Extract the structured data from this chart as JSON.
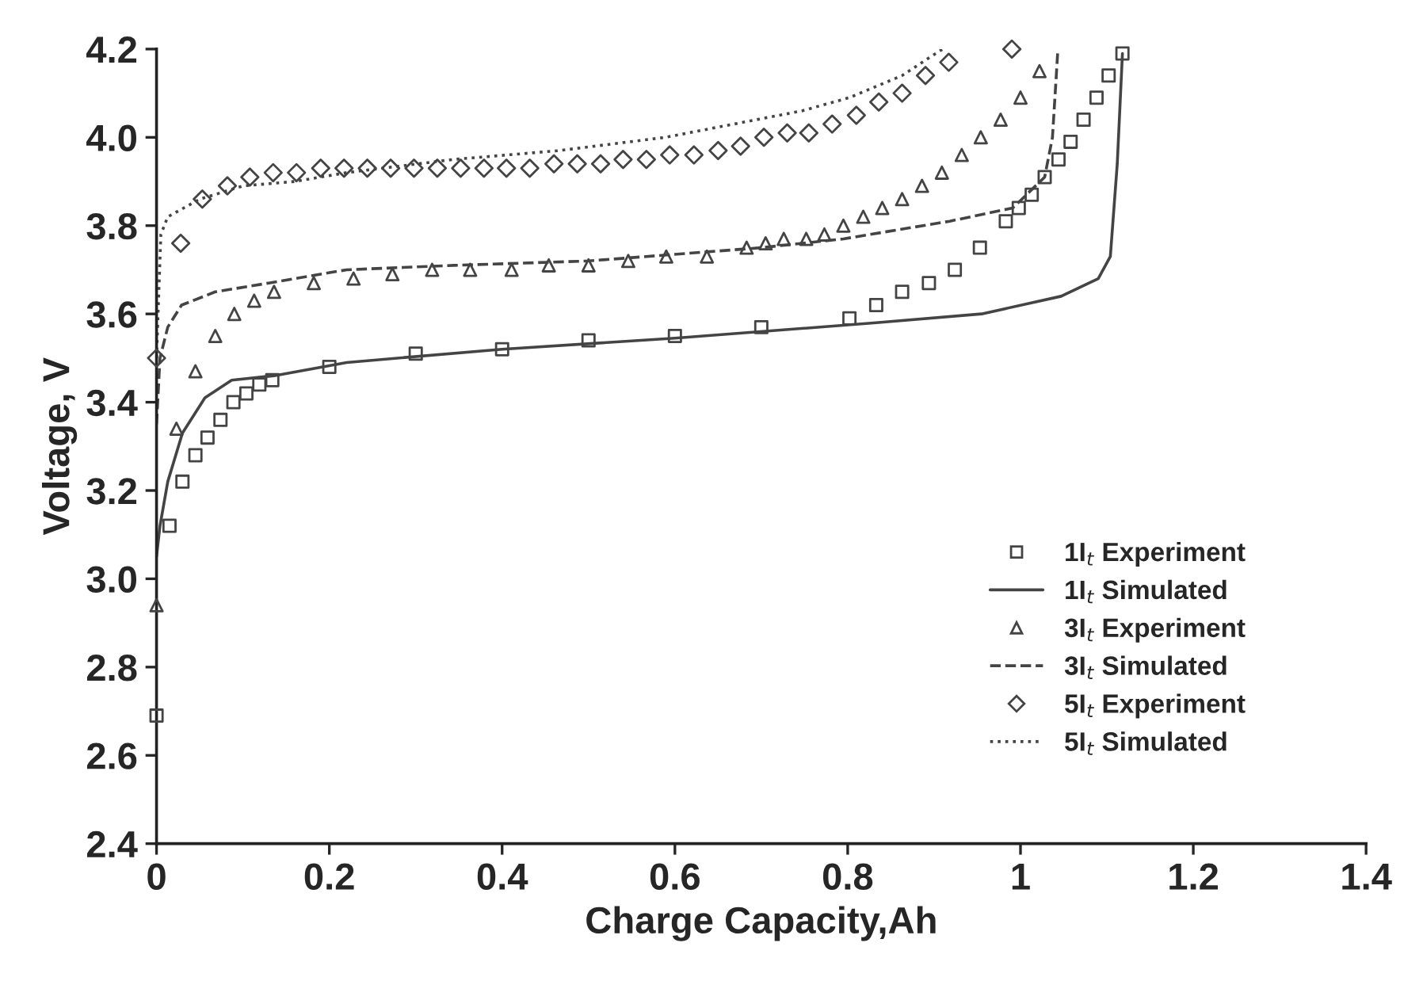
{
  "chart_data": {
    "type": "line",
    "xlabel": "Charge Capacity,Ah",
    "ylabel": "Voltage, V",
    "xlim": [
      0,
      1.4
    ],
    "xticks": [
      0,
      0.2,
      0.4,
      0.6,
      0.8,
      1,
      1.2,
      1.4
    ],
    "ylim": [
      2.4,
      4.2
    ],
    "yticks": [
      {
        "value": 2.4,
        "label": "2.4"
      },
      {
        "value": 2.6,
        "label": "2.6"
      },
      {
        "value": 2.8,
        "label": "2.8"
      },
      {
        "value": 3.0,
        "label": "3.0"
      },
      {
        "value": 3.2,
        "label": "3.2"
      },
      {
        "value": 3.4,
        "label": "3.4"
      },
      {
        "value": 3.6,
        "label": "3.6"
      },
      {
        "value": 3.8,
        "label": "3.8"
      },
      {
        "value": 4.0,
        "label": "4.0"
      },
      {
        "value": 4.2,
        "label": "4.2"
      }
    ],
    "grid": false,
    "legend": "bottom right",
    "series": [
      {
        "name": "1I$_{t}$ Experiment",
        "type": "scatter",
        "marker": "square",
        "color": "#444444",
        "x": [
          0,
          0.015,
          0.03,
          0.045,
          0.059,
          0.074,
          0.089,
          0.104,
          0.119,
          0.134,
          0.2,
          0.3,
          0.4,
          0.5,
          0.6,
          0.7,
          0.802,
          0.833,
          0.863,
          0.894,
          0.924,
          0.953,
          0.983,
          0.998,
          1.013,
          1.028,
          1.044,
          1.058,
          1.073,
          1.088,
          1.102,
          1.118
        ],
        "values": [
          2.69,
          3.12,
          3.22,
          3.28,
          3.32,
          3.36,
          3.4,
          3.42,
          3.44,
          3.45,
          3.48,
          3.51,
          3.52,
          3.54,
          3.55,
          3.57,
          3.59,
          3.62,
          3.65,
          3.67,
          3.7,
          3.75,
          3.81,
          3.84,
          3.87,
          3.91,
          3.95,
          3.99,
          4.04,
          4.09,
          4.14,
          4.19
        ]
      },
      {
        "name": "1I$_{t}$ Simulated",
        "line_style": "solid",
        "color": "#444444",
        "x": [
          0,
          0.004,
          0.013,
          0.03,
          0.056,
          0.087,
          0.136,
          0.22,
          0.4,
          0.6,
          0.833,
          0.955,
          1.047,
          1.09,
          1.104,
          1.112,
          1.118
        ],
        "values": [
          3.05,
          3.12,
          3.22,
          3.33,
          3.41,
          3.45,
          3.46,
          3.49,
          3.52,
          3.545,
          3.58,
          3.6,
          3.64,
          3.68,
          3.73,
          3.94,
          4.19
        ]
      },
      {
        "name": "3I$_{t}$ Experiment",
        "type": "scatter",
        "marker": "triangle",
        "color": "#444444",
        "x": [
          0,
          0.023,
          0.045,
          0.068,
          0.09,
          0.113,
          0.136,
          0.182,
          0.228,
          0.273,
          0.319,
          0.363,
          0.411,
          0.454,
          0.5,
          0.546,
          0.59,
          0.637,
          0.683,
          0.705,
          0.726,
          0.752,
          0.773,
          0.795,
          0.818,
          0.84,
          0.863,
          0.886,
          0.909,
          0.932,
          0.954,
          0.977,
          1.0,
          1.022
        ],
        "values": [
          2.94,
          3.34,
          3.47,
          3.55,
          3.6,
          3.63,
          3.65,
          3.67,
          3.68,
          3.69,
          3.7,
          3.7,
          3.7,
          3.71,
          3.71,
          3.72,
          3.73,
          3.73,
          3.75,
          3.76,
          3.77,
          3.77,
          3.78,
          3.8,
          3.82,
          3.84,
          3.86,
          3.89,
          3.92,
          3.96,
          4.0,
          4.04,
          4.09,
          4.15
        ]
      },
      {
        "name": "3I$_{t}$ Simulated",
        "line_style": "dashed",
        "color": "#444444",
        "x": [
          0,
          0.004,
          0.013,
          0.029,
          0.068,
          0.13,
          0.22,
          0.344,
          0.5,
          0.7,
          0.795,
          0.918,
          0.991,
          1.028,
          1.037,
          1.043
        ],
        "values": [
          3.35,
          3.5,
          3.57,
          3.62,
          3.65,
          3.67,
          3.7,
          3.71,
          3.72,
          3.75,
          3.77,
          3.81,
          3.84,
          3.91,
          4.0,
          4.19
        ]
      },
      {
        "name": "5I$_{t}$ Experiment",
        "type": "scatter",
        "marker": "diamond",
        "color": "#444444",
        "x": [
          0,
          0.028,
          0.053,
          0.082,
          0.108,
          0.135,
          0.162,
          0.19,
          0.217,
          0.244,
          0.271,
          0.298,
          0.325,
          0.352,
          0.379,
          0.405,
          0.432,
          0.46,
          0.487,
          0.514,
          0.54,
          0.567,
          0.594,
          0.622,
          0.65,
          0.676,
          0.703,
          0.73,
          0.755,
          0.782,
          0.81,
          0.836,
          0.863,
          0.89,
          0.917,
          0.99
        ],
        "values": [
          3.5,
          3.76,
          3.86,
          3.89,
          3.91,
          3.92,
          3.92,
          3.93,
          3.93,
          3.93,
          3.93,
          3.93,
          3.93,
          3.93,
          3.93,
          3.93,
          3.93,
          3.94,
          3.94,
          3.94,
          3.95,
          3.95,
          3.96,
          3.96,
          3.97,
          3.98,
          4.0,
          4.01,
          4.01,
          4.03,
          4.05,
          4.08,
          4.1,
          4.14,
          4.17,
          4.2
        ]
      },
      {
        "name": "5I$_{t}$ Simulated",
        "line_style": "dotted",
        "color": "#444444",
        "x": [
          0,
          0.005,
          0.013,
          0.05,
          0.1,
          0.16,
          0.22,
          0.344,
          0.466,
          0.589,
          0.747,
          0.802,
          0.863,
          0.894,
          0.91
        ],
        "values": [
          3.5,
          3.78,
          3.82,
          3.86,
          3.89,
          3.9,
          3.92,
          3.95,
          3.97,
          4.0,
          4.06,
          4.09,
          4.14,
          4.18,
          4.2
        ]
      }
    ]
  }
}
